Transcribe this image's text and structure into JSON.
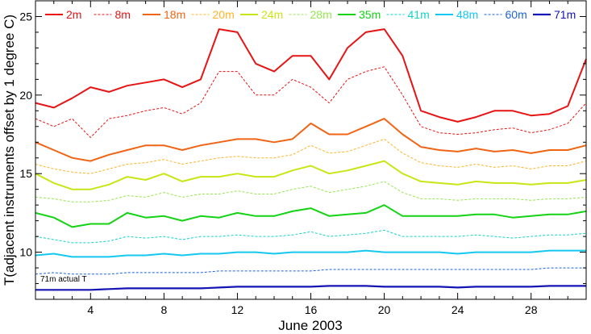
{
  "chart_data": {
    "type": "line",
    "xlabel": "June 2003",
    "ylabel": "T(adjacent instruments offset by 1 degree C)",
    "xlim": [
      1,
      31
    ],
    "ylim": [
      7,
      26
    ],
    "x_ticks": [
      4,
      8,
      12,
      16,
      20,
      24,
      28
    ],
    "y_ticks": [
      10,
      15,
      20,
      25
    ],
    "grid": false,
    "legend_position": "top",
    "annotation": "71m actual T",
    "series": [
      {
        "name": "2m",
        "color": "#e61414",
        "dash": "solid",
        "width": 2.0,
        "x": [
          1,
          2,
          3,
          4,
          5,
          6,
          7,
          8,
          9,
          10,
          11,
          12,
          13,
          14,
          15,
          16,
          17,
          18,
          19,
          20,
          21,
          22,
          23,
          24,
          25,
          26,
          27,
          28,
          29,
          30,
          31
        ],
        "values": [
          19.5,
          19.2,
          19.8,
          20.5,
          20.2,
          20.6,
          20.8,
          21.0,
          20.5,
          21.0,
          24.2,
          24.0,
          22.0,
          21.5,
          22.5,
          22.5,
          21.0,
          23.0,
          24.0,
          24.2,
          22.5,
          19.0,
          18.6,
          18.3,
          18.6,
          19.0,
          19.0,
          18.7,
          18.8,
          19.3,
          22.3
        ]
      },
      {
        "name": "8m",
        "color": "#e61414",
        "dash": "dashed",
        "width": 1.0,
        "x": [
          1,
          2,
          3,
          4,
          5,
          6,
          7,
          8,
          9,
          10,
          11,
          12,
          13,
          14,
          15,
          16,
          17,
          18,
          19,
          20,
          21,
          22,
          23,
          24,
          25,
          26,
          27,
          28,
          29,
          30,
          31
        ],
        "values": [
          18.5,
          18.0,
          18.5,
          17.3,
          18.5,
          18.7,
          19.0,
          19.2,
          18.8,
          19.5,
          21.5,
          21.5,
          20.0,
          20.0,
          21.0,
          20.5,
          19.5,
          21.0,
          21.5,
          21.8,
          20.0,
          18.0,
          17.6,
          17.5,
          17.6,
          17.8,
          17.9,
          17.6,
          17.8,
          18.2,
          19.5
        ]
      },
      {
        "name": "18m",
        "color": "#f06414",
        "dash": "solid",
        "width": 2.0,
        "x": [
          1,
          2,
          3,
          4,
          5,
          6,
          7,
          8,
          9,
          10,
          11,
          12,
          13,
          14,
          15,
          16,
          17,
          18,
          19,
          20,
          21,
          22,
          23,
          24,
          25,
          26,
          27,
          28,
          29,
          30,
          31
        ],
        "values": [
          17.0,
          16.5,
          16.0,
          15.8,
          16.2,
          16.5,
          16.8,
          16.8,
          16.5,
          16.8,
          17.0,
          17.2,
          17.2,
          17.0,
          17.2,
          18.2,
          17.5,
          17.5,
          18.0,
          18.5,
          17.5,
          16.7,
          16.5,
          16.4,
          16.6,
          16.4,
          16.5,
          16.3,
          16.5,
          16.5,
          16.8
        ]
      },
      {
        "name": "20m",
        "color": "#ffb428",
        "dash": "dashed",
        "width": 1.0,
        "x": [
          1,
          2,
          3,
          4,
          5,
          6,
          7,
          8,
          9,
          10,
          11,
          12,
          13,
          14,
          15,
          16,
          17,
          18,
          19,
          20,
          21,
          22,
          23,
          24,
          25,
          26,
          27,
          28,
          29,
          30,
          31
        ],
        "values": [
          15.6,
          15.3,
          15.1,
          15.0,
          15.3,
          15.6,
          15.7,
          15.9,
          15.6,
          15.8,
          16.0,
          16.1,
          16.0,
          16.0,
          16.2,
          16.8,
          16.3,
          16.4,
          16.8,
          17.2,
          16.3,
          15.7,
          15.5,
          15.4,
          15.6,
          15.4,
          15.5,
          15.3,
          15.5,
          15.5,
          15.8
        ]
      },
      {
        "name": "24m",
        "color": "#c8e614",
        "dash": "solid",
        "width": 2.0,
        "x": [
          1,
          2,
          3,
          4,
          5,
          6,
          7,
          8,
          9,
          10,
          11,
          12,
          13,
          14,
          15,
          16,
          17,
          18,
          19,
          20,
          21,
          22,
          23,
          24,
          25,
          26,
          27,
          28,
          29,
          30,
          31
        ],
        "values": [
          15.0,
          14.4,
          14.0,
          14.0,
          14.3,
          14.8,
          14.6,
          15.0,
          14.5,
          14.8,
          14.8,
          15.0,
          14.8,
          14.8,
          15.2,
          15.5,
          15.0,
          15.2,
          15.5,
          15.8,
          15.0,
          14.5,
          14.4,
          14.3,
          14.5,
          14.4,
          14.4,
          14.3,
          14.4,
          14.4,
          14.6
        ]
      },
      {
        "name": "28m",
        "color": "#96e650",
        "dash": "dashed",
        "width": 1.0,
        "x": [
          1,
          2,
          3,
          4,
          5,
          6,
          7,
          8,
          9,
          10,
          11,
          12,
          13,
          14,
          15,
          16,
          17,
          18,
          19,
          20,
          21,
          22,
          23,
          24,
          25,
          26,
          27,
          28,
          29,
          30,
          31
        ],
        "values": [
          13.5,
          13.4,
          13.2,
          13.2,
          13.3,
          13.6,
          13.5,
          13.8,
          13.5,
          13.7,
          13.7,
          13.9,
          13.7,
          13.7,
          14.0,
          14.2,
          13.8,
          14.0,
          14.2,
          14.5,
          13.8,
          13.4,
          13.4,
          13.3,
          13.4,
          13.4,
          13.4,
          13.3,
          13.4,
          13.4,
          13.5
        ]
      },
      {
        "name": "35m",
        "color": "#14d214",
        "dash": "solid",
        "width": 2.0,
        "x": [
          1,
          2,
          3,
          4,
          5,
          6,
          7,
          8,
          9,
          10,
          11,
          12,
          13,
          14,
          15,
          16,
          17,
          18,
          19,
          20,
          21,
          22,
          23,
          24,
          25,
          26,
          27,
          28,
          29,
          30,
          31
        ],
        "values": [
          12.5,
          12.2,
          11.6,
          11.8,
          11.8,
          12.5,
          12.2,
          12.3,
          12.0,
          12.3,
          12.2,
          12.5,
          12.3,
          12.3,
          12.6,
          12.8,
          12.3,
          12.4,
          12.5,
          13.0,
          12.3,
          12.3,
          12.3,
          12.3,
          12.4,
          12.4,
          12.2,
          12.3,
          12.4,
          12.4,
          12.6
        ]
      },
      {
        "name": "41m",
        "color": "#14d2c8",
        "dash": "dashed",
        "width": 1.0,
        "x": [
          1,
          2,
          3,
          4,
          5,
          6,
          7,
          8,
          9,
          10,
          11,
          12,
          13,
          14,
          15,
          16,
          17,
          18,
          19,
          20,
          21,
          22,
          23,
          24,
          25,
          26,
          27,
          28,
          29,
          30,
          31
        ],
        "values": [
          11.0,
          10.8,
          10.6,
          10.6,
          10.7,
          11.0,
          10.9,
          11.0,
          10.8,
          11.0,
          11.0,
          11.1,
          11.0,
          11.0,
          11.1,
          11.3,
          11.0,
          11.1,
          11.2,
          11.4,
          11.0,
          11.0,
          11.0,
          11.0,
          11.1,
          11.0,
          10.9,
          11.0,
          11.1,
          11.1,
          11.2
        ]
      },
      {
        "name": "48m",
        "color": "#14c8f0",
        "dash": "solid",
        "width": 2.0,
        "x": [
          1,
          2,
          3,
          4,
          5,
          6,
          7,
          8,
          9,
          10,
          11,
          12,
          13,
          14,
          15,
          16,
          17,
          18,
          19,
          20,
          21,
          22,
          23,
          24,
          25,
          26,
          27,
          28,
          29,
          30,
          31
        ],
        "values": [
          9.8,
          9.9,
          9.7,
          9.7,
          9.7,
          9.8,
          9.8,
          9.9,
          9.8,
          9.9,
          9.9,
          10.0,
          10.0,
          9.9,
          10.0,
          10.0,
          10.0,
          10.0,
          10.1,
          10.0,
          10.0,
          10.0,
          10.0,
          9.9,
          10.0,
          10.0,
          10.0,
          10.0,
          10.1,
          10.1,
          10.1
        ]
      },
      {
        "name": "60m",
        "color": "#1e64dc",
        "dash": "dashed",
        "width": 1.0,
        "x": [
          1,
          2,
          3,
          4,
          5,
          6,
          7,
          8,
          9,
          10,
          11,
          12,
          13,
          14,
          15,
          16,
          17,
          18,
          19,
          20,
          21,
          22,
          23,
          24,
          25,
          26,
          27,
          28,
          29,
          30,
          31
        ],
        "values": [
          8.6,
          8.7,
          8.6,
          8.6,
          8.6,
          8.7,
          8.7,
          8.7,
          8.7,
          8.7,
          8.8,
          8.8,
          8.8,
          8.8,
          8.8,
          8.8,
          8.9,
          8.9,
          8.9,
          8.9,
          8.9,
          8.9,
          8.9,
          8.9,
          8.9,
          8.9,
          8.9,
          8.9,
          9.0,
          9.0,
          9.0
        ]
      },
      {
        "name": "71m",
        "color": "#1414b4",
        "dash": "solid",
        "width": 2.2,
        "x": [
          1,
          2,
          3,
          4,
          5,
          6,
          7,
          8,
          9,
          10,
          11,
          12,
          13,
          14,
          15,
          16,
          17,
          18,
          19,
          20,
          21,
          22,
          23,
          24,
          25,
          26,
          27,
          28,
          29,
          30,
          31
        ],
        "values": [
          7.6,
          7.6,
          7.6,
          7.6,
          7.65,
          7.7,
          7.7,
          7.7,
          7.7,
          7.7,
          7.75,
          7.8,
          7.8,
          7.8,
          7.8,
          7.8,
          7.85,
          7.85,
          7.85,
          7.8,
          7.8,
          7.8,
          7.8,
          7.75,
          7.8,
          7.8,
          7.8,
          7.8,
          7.85,
          7.85,
          7.85
        ]
      }
    ]
  }
}
